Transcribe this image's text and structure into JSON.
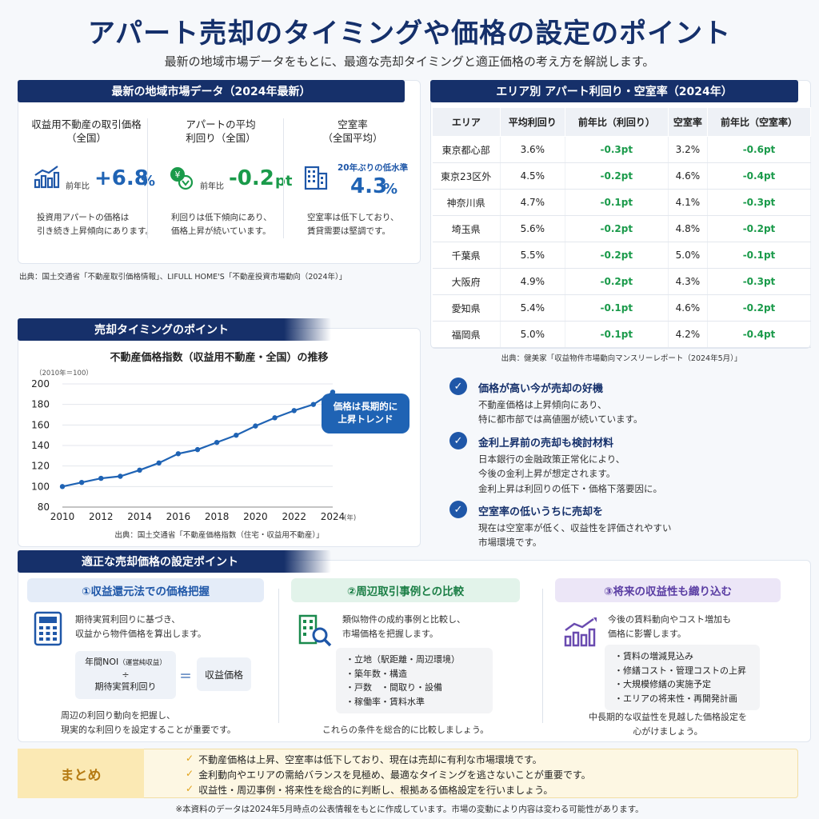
{
  "header": {
    "title": "アパート売却のタイミングや価格の設定のポイント",
    "subtitle": "最新の地域市場データをもとに、最適な売却タイミングと適正価格の考え方を解説します。"
  },
  "market": {
    "heading": "最新の地域市場データ（2024年最新）",
    "stats": [
      {
        "label": "収益用不動産の取引価格\n（全国）",
        "prefix": "前年比",
        "value": "+6.8",
        "unit": "%",
        "note": "投資用アパートの価格は\n引き続き上昇傾向にあります。",
        "icon": "bar-chart-up-icon"
      },
      {
        "label": "アパートの平均\n利回り（全国）",
        "prefix": "前年比",
        "value": "-0.2",
        "unit": "pt",
        "note": "利回りは低下傾向にあり、\n価格上昇が続いています。",
        "icon": "coins-icon"
      },
      {
        "label": "空室率\n（全国平均）",
        "prefix": "20年ぶりの低水準",
        "value": "4.3",
        "unit": "%",
        "note": "空室率は低下しており、\n賃貸需要は堅調です。",
        "icon": "building-icon"
      }
    ],
    "source": "出典：国土交通省「不動産取引価格情報」、LIFULL HOME'S「不動産投資市場動向（2024年）」"
  },
  "area_table": {
    "heading": "エリア別 アパート利回り・空室率（2024年）",
    "columns": [
      "エリア",
      "平均利回り",
      "前年比（利回り）",
      "空室率",
      "前年比（空室率）"
    ],
    "rows": [
      [
        "東京都心部",
        "3.6%",
        "-0.3pt",
        "3.2%",
        "-0.6pt"
      ],
      [
        "東京23区外",
        "4.5%",
        "-0.2pt",
        "4.6%",
        "-0.4pt"
      ],
      [
        "神奈川県",
        "4.7%",
        "-0.1pt",
        "4.1%",
        "-0.3pt"
      ],
      [
        "埼玉県",
        "5.6%",
        "-0.2pt",
        "4.8%",
        "-0.2pt"
      ],
      [
        "千葉県",
        "5.5%",
        "-0.2pt",
        "5.0%",
        "-0.1pt"
      ],
      [
        "大阪府",
        "4.9%",
        "-0.2pt",
        "4.3%",
        "-0.3pt"
      ],
      [
        "愛知県",
        "5.4%",
        "-0.1pt",
        "4.6%",
        "-0.2pt"
      ],
      [
        "福岡県",
        "5.0%",
        "-0.1pt",
        "4.2%",
        "-0.4pt"
      ]
    ],
    "source": "出典：健美家「収益物件市場動向マンスリーレポート（2024年5月）」"
  },
  "timing": {
    "heading": "売却タイミングのポイント",
    "source": "出典：国土交通省「不動産価格指数（住宅・収益用不動産）」"
  },
  "chart_data": {
    "type": "line",
    "title": "不動産価格指数（収益用不動産・全国）の推移",
    "index_note": "（2010年＝100）",
    "x_unit": "(年)",
    "x": [
      2010,
      2011,
      2012,
      2013,
      2014,
      2015,
      2016,
      2017,
      2018,
      2019,
      2020,
      2021,
      2022,
      2023,
      2024
    ],
    "values": [
      100,
      104,
      108,
      110,
      116,
      123,
      132,
      136,
      143,
      150,
      159,
      167,
      174,
      180,
      192
    ],
    "xticks": [
      2010,
      2012,
      2014,
      2016,
      2018,
      2020,
      2022,
      2024
    ],
    "yticks": [
      80,
      100,
      120,
      140,
      160,
      180,
      200
    ],
    "ylim": [
      80,
      200
    ],
    "grid": true,
    "color": "#1f63b4",
    "annotation": "価格は長期的に\n上昇トレンド"
  },
  "points": [
    {
      "title": "価格が高い今が売却の好機",
      "body": "不動産価格は上昇傾向にあり、\n特に都市部では高値圏が続いています。"
    },
    {
      "title": "金利上昇前の売却も検討材料",
      "body": "日本銀行の金融政策正常化により、\n今後の金利上昇が想定されます。\n金利上昇は利回りの低下・価格下落要因に。"
    },
    {
      "title": "空室率の低いうちに売却を",
      "body": "現在は空室率が低く、収益性を評価されやすい\n市場環境です。"
    }
  ],
  "pricing": {
    "heading": "適正な売却価格の設定ポイント",
    "cols": [
      {
        "title": "①収益還元法での価格把握",
        "intro": "期待実質利回りに基づき、\n収益から物件価格を算出します。",
        "formula_top": "年間NOI",
        "formula_top_note": "（運営純収益）",
        "formula_div": "÷",
        "formula_bottom": "期待実質利回り",
        "formula_eq": "＝",
        "formula_result": "収益価格",
        "outro": "周辺の利回り動向を把握し、\n現実的な利回りを設定することが重要です。"
      },
      {
        "title": "②周辺取引事例との比較",
        "intro": "類似物件の成約事例と比較し、\n市場価格を把握します。",
        "items": [
          "・立地（駅距離・周辺環境）",
          "・築年数・構造",
          "・戸数　・間取り・設備",
          "・稼働率・賃料水準"
        ],
        "outro": "これらの条件を総合的に比較しましょう。"
      },
      {
        "title": "③将来の収益性も織り込む",
        "intro": "今後の賃料動向やコスト増加も\n価格に影響します。",
        "items": [
          "・賃料の増減見込み",
          "・修繕コスト・管理コストの上昇",
          "・大規模修繕の実施予定",
          "・エリアの将来性・再開発計画"
        ],
        "outro": "中長期的な収益性を見越した価格設定を\n心がけましょう。"
      }
    ]
  },
  "summary": {
    "label": "まとめ",
    "items": [
      "不動産価格は上昇、空室率は低下しており、現在は売却に有利な市場環境です。",
      "金利動向やエリアの需給バランスを見極め、最適なタイミングを逃さないことが重要です。",
      "収益性・周辺事例・将来性を総合的に判断し、根拠ある価格設定を行いましょう。"
    ]
  },
  "footer": "※本資料のデータは2024年5月時点の公表情報をもとに作成しています。市場の変動により内容は変わる可能性があります。",
  "colors": {
    "navy": "#16306a",
    "blue": "#1f63b4",
    "green": "#1a9a4a",
    "purple": "#6a4bb0"
  }
}
